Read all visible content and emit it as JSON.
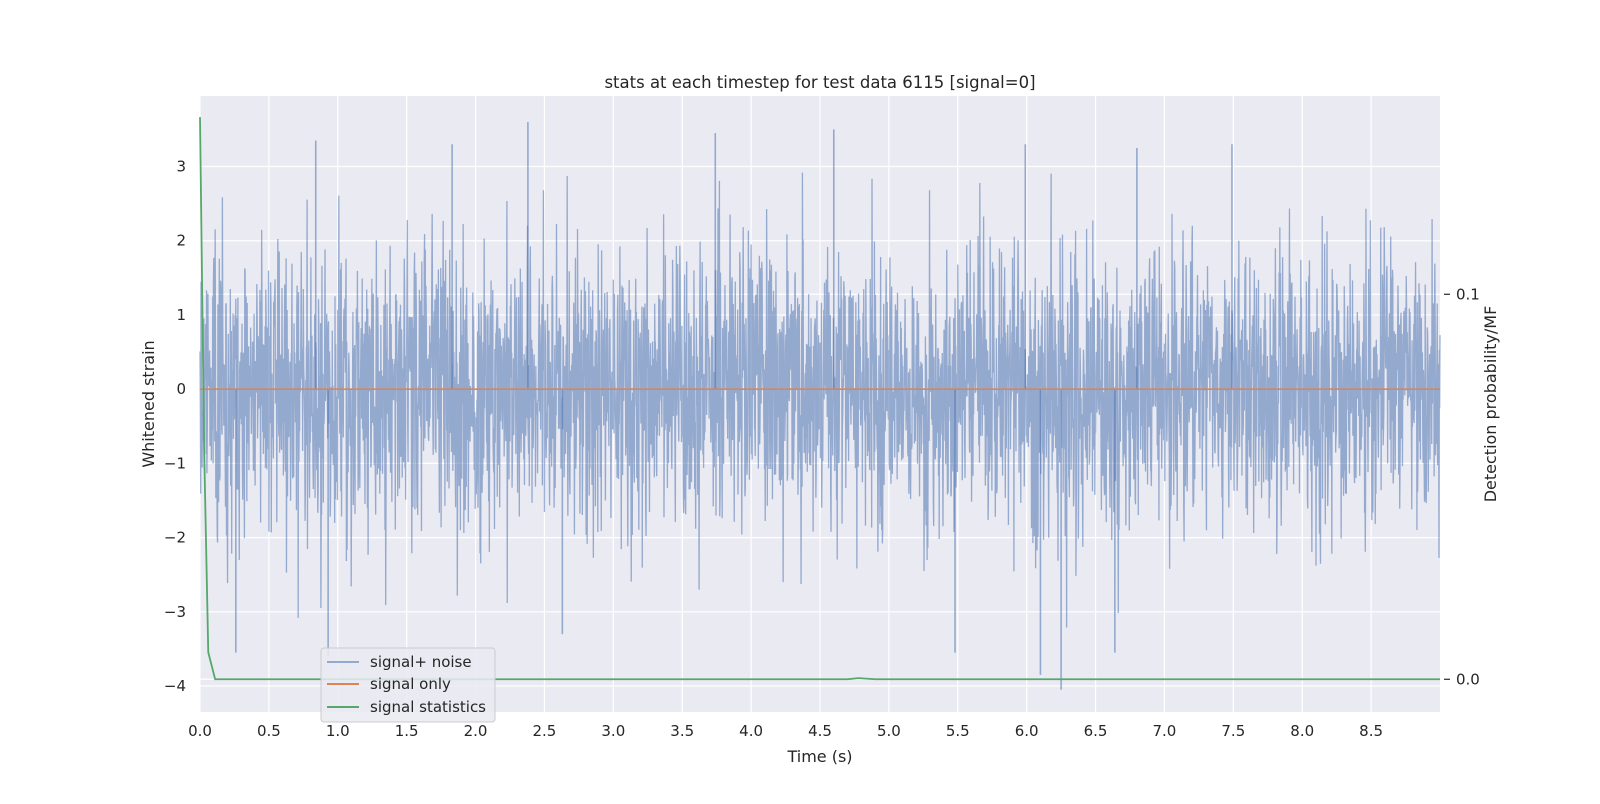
{
  "chart_data": {
    "type": "line",
    "title": "stats at each timestep for test data 6115 [signal=0]",
    "xlabel": "Time (s)",
    "ylabel": "Whitened strain",
    "y2label": "Detection probability/MF",
    "xlim": [
      0.0,
      9.0
    ],
    "ylim": [
      -4.35,
      3.95
    ],
    "y2lim": [
      -0.0085,
      0.1515
    ],
    "xticks": [
      "0.0",
      "0.5",
      "1.0",
      "1.5",
      "2.0",
      "2.5",
      "3.0",
      "3.5",
      "4.0",
      "4.5",
      "5.0",
      "5.5",
      "6.0",
      "6.5",
      "7.0",
      "7.5",
      "8.0",
      "8.5"
    ],
    "yticks": [
      "−4",
      "−3",
      "−2",
      "−1",
      "0",
      "1",
      "2",
      "3"
    ],
    "y2ticks": [
      "0.0",
      "0.1"
    ],
    "grid": true,
    "legend_position": "lower-left",
    "series": [
      {
        "name": "signal+ noise",
        "color": "#4c72b0",
        "opacity": 0.55,
        "axis": "left",
        "sampling_rate_hz": 2048,
        "approx_std": 0.95,
        "peak_values": [
          {
            "x": 0.84,
            "y": 3.35
          },
          {
            "x": 1.83,
            "y": 3.3
          },
          {
            "x": 2.38,
            "y": 3.6
          },
          {
            "x": 3.74,
            "y": 3.45
          },
          {
            "x": 4.6,
            "y": 3.5
          },
          {
            "x": 5.99,
            "y": 3.3
          },
          {
            "x": 7.49,
            "y": 3.3
          },
          {
            "x": 6.8,
            "y": 3.25
          },
          {
            "x": 0.26,
            "y": -3.55
          },
          {
            "x": 0.93,
            "y": -3.6
          },
          {
            "x": 6.25,
            "y": -4.05
          },
          {
            "x": 6.1,
            "y": -3.85
          },
          {
            "x": 5.48,
            "y": -3.55
          },
          {
            "x": 6.64,
            "y": -3.55
          },
          {
            "x": 2.63,
            "y": -3.3
          }
        ]
      },
      {
        "name": "signal only",
        "color": "#dd8452",
        "axis": "left",
        "x": [
          0.0,
          9.0
        ],
        "y": [
          0.0,
          0.0
        ]
      },
      {
        "name": "signal statistics",
        "color": "#55a868",
        "axis": "right",
        "x": [
          0.0,
          0.03,
          0.06,
          0.11,
          0.2,
          4.7,
          4.78,
          4.9,
          9.0
        ],
        "y": [
          0.146,
          0.06,
          0.007,
          0.0,
          0.0,
          0.0,
          0.0003,
          0.0,
          0.0
        ]
      }
    ]
  }
}
